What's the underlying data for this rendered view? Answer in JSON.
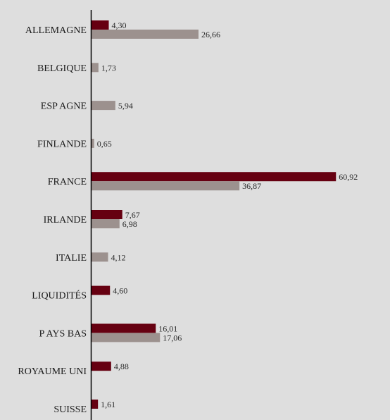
{
  "chart_data": {
    "type": "bar",
    "orientation": "horizontal",
    "categories": [
      "ALLEMAGNE",
      "BELGIQUE",
      "ESP AGNE",
      "FINLANDE",
      "FRANCE",
      "IRLANDE",
      "ITALIE",
      "LIQUIDITÉS",
      "P AYS BAS",
      "ROYAUME UNI",
      "SUISSE"
    ],
    "series": [
      {
        "color": "#660011",
        "values": [
          4.3,
          null,
          null,
          null,
          60.92,
          7.67,
          null,
          4.6,
          16.01,
          4.88,
          1.61
        ],
        "labels": [
          "4,30",
          "",
          "",
          "",
          "60,92",
          "7,67",
          "",
          "4,60",
          "16,01",
          "4,88",
          "1,61"
        ]
      },
      {
        "color": "#9c918e",
        "values": [
          26.66,
          1.73,
          5.94,
          0.65,
          36.87,
          6.98,
          4.12,
          null,
          17.06,
          null,
          null
        ],
        "labels": [
          "26,66",
          "1,73",
          "5,94",
          "0,65",
          "36,87",
          "6,98",
          "4,12",
          "",
          "17,06",
          "",
          ""
        ]
      }
    ],
    "xlim": [
      0,
      70
    ],
    "grid": false,
    "legend": "none",
    "background": "#dedede",
    "axis_color": "#000000"
  }
}
